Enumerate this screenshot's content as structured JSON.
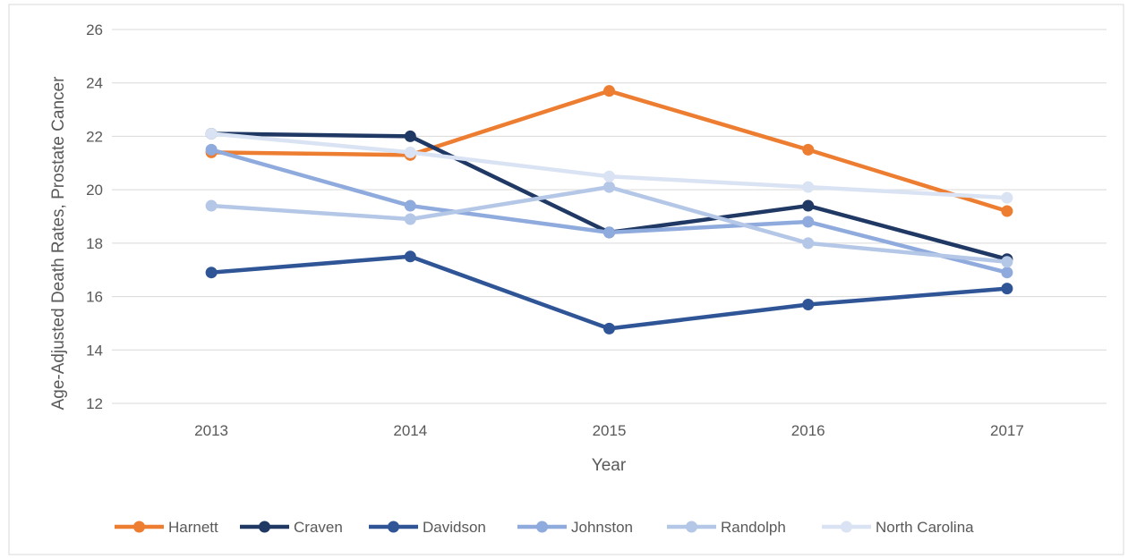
{
  "chart_data": {
    "type": "line",
    "title": "",
    "xlabel": "Year",
    "ylabel": "Age-Adjusted Death Rates, Prostate Cancer",
    "categories": [
      "2013",
      "2014",
      "2015",
      "2016",
      "2017"
    ],
    "ylim": [
      12,
      26
    ],
    "yticks": [
      "12",
      "14",
      "16",
      "18",
      "20",
      "22",
      "24",
      "26"
    ],
    "grid": true,
    "legend_position": "bottom",
    "series": [
      {
        "name": "Harnett",
        "color": "#ED7D31",
        "values": [
          21.4,
          21.3,
          23.7,
          21.5,
          19.2
        ]
      },
      {
        "name": "Craven",
        "color": "#203864",
        "values": [
          22.1,
          22.0,
          18.4,
          19.4,
          17.4
        ]
      },
      {
        "name": "Davidson",
        "color": "#2F5597",
        "values": [
          16.9,
          17.5,
          14.8,
          15.7,
          16.3
        ]
      },
      {
        "name": "Johnston",
        "color": "#8FAADC",
        "values": [
          21.5,
          19.4,
          18.4,
          18.8,
          16.9
        ]
      },
      {
        "name": "Randolph",
        "color": "#B4C7E7",
        "values": [
          19.4,
          18.9,
          20.1,
          18.0,
          17.3
        ]
      },
      {
        "name": "North Carolina",
        "color": "#DAE3F3",
        "values": [
          22.1,
          21.4,
          20.5,
          20.1,
          19.7
        ]
      }
    ]
  }
}
